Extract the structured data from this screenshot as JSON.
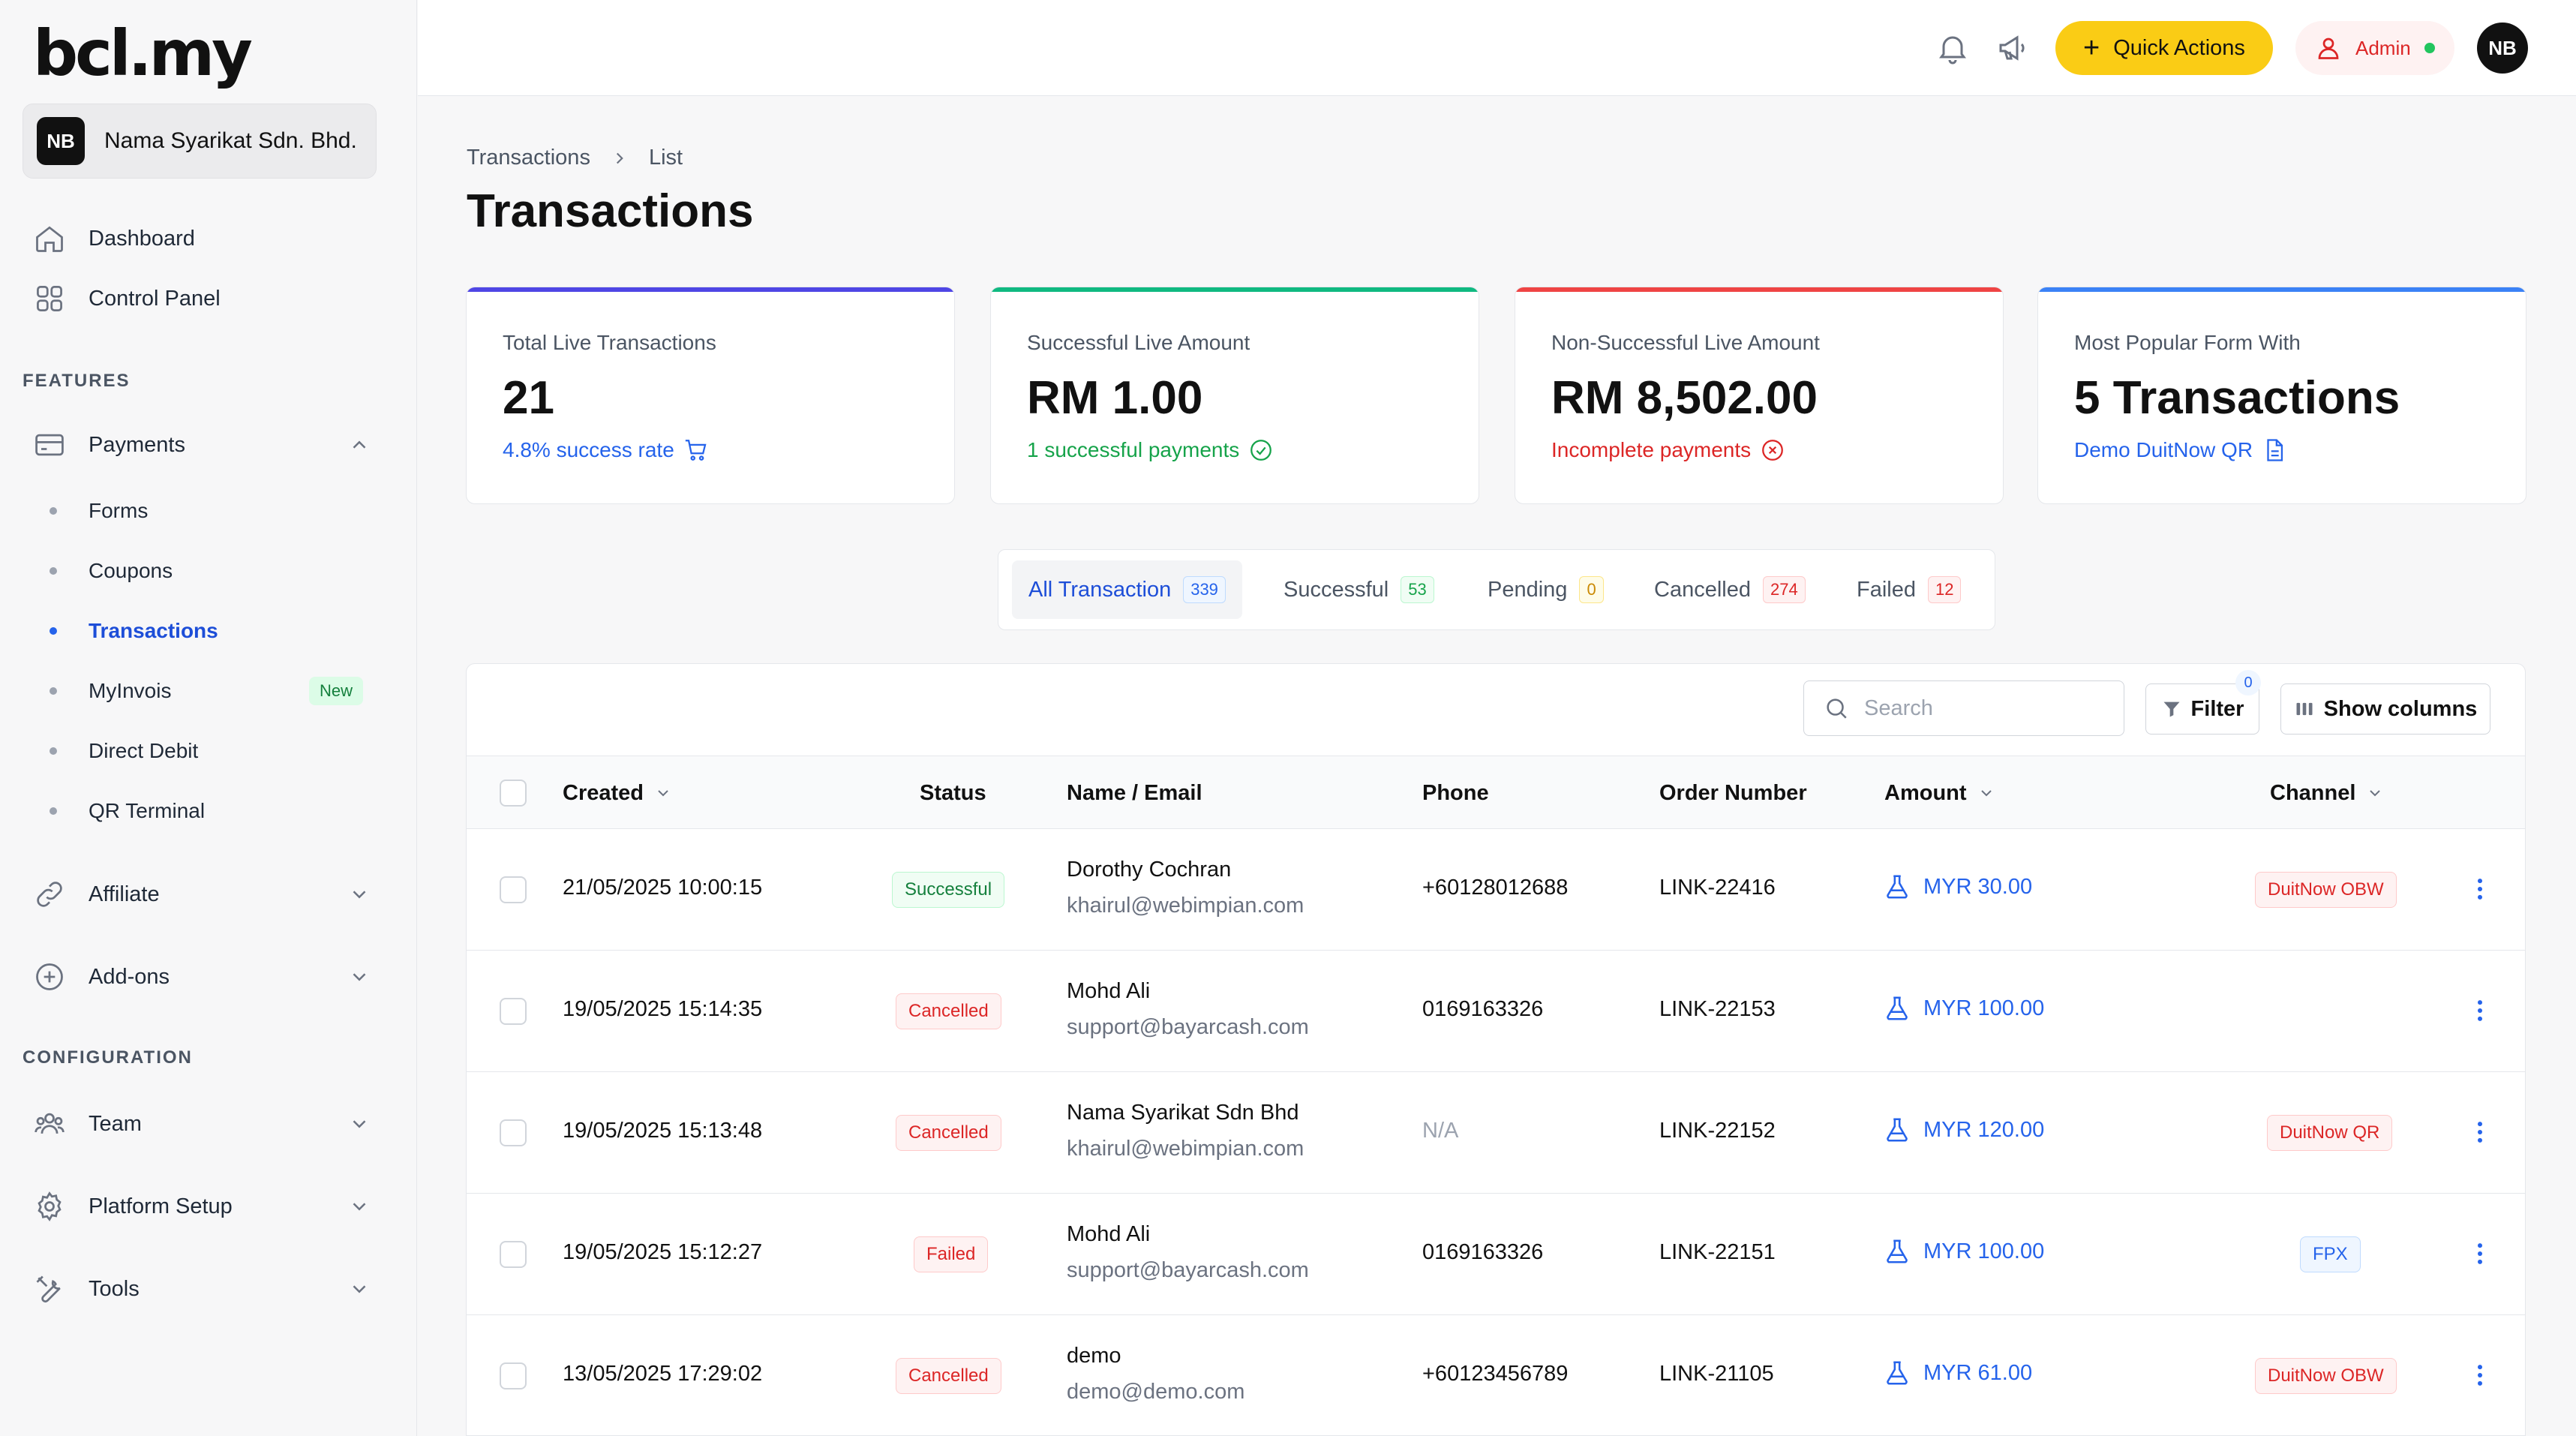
{
  "brand": {
    "logo": "bcl.my"
  },
  "org": {
    "initials": "NB",
    "name": "Nama Syarikat Sdn. Bhd."
  },
  "nav": {
    "dashboard": "Dashboard",
    "control_panel": "Control Panel",
    "features_label": "FEATURES",
    "payments": "Payments",
    "payments_sub": [
      "Forms",
      "Coupons",
      "Transactions",
      "MyInvois",
      "Direct Debit",
      "QR Terminal"
    ],
    "active_sub": "Transactions",
    "new_badge": "New",
    "affiliate": "Affiliate",
    "addons": "Add-ons",
    "config_label": "CONFIGURATION",
    "team": "Team",
    "platform_setup": "Platform Setup",
    "tools": "Tools"
  },
  "topbar": {
    "quick_actions": "Quick Actions",
    "admin": "Admin",
    "user_initials": "NB"
  },
  "breadcrumb": {
    "root": "Transactions",
    "current": "List"
  },
  "page_title": "Transactions",
  "stats": [
    {
      "label": "Total Live Transactions",
      "value": "21",
      "footer": "4.8% success rate",
      "accent": "#4f46e5",
      "footer_color": "#2563eb",
      "icon": "cart-icon"
    },
    {
      "label": "Successful Live Amount",
      "value": "RM 1.00",
      "footer": "1 successful payments",
      "accent": "#10b981",
      "footer_color": "#16a34a",
      "icon": "check-circle-icon"
    },
    {
      "label": "Non-Successful Live Amount",
      "value": "RM 8,502.00",
      "footer": "Incomplete payments",
      "accent": "#ef4444",
      "footer_color": "#dc2626",
      "icon": "x-circle-icon"
    },
    {
      "label": "Most Popular Form With",
      "value": "5 Transactions",
      "footer": "Demo DuitNow QR",
      "accent": "#3b82f6",
      "footer_color": "#2563eb",
      "icon": "document-icon"
    }
  ],
  "tabs": [
    {
      "label": "All Transaction",
      "count": "339",
      "color": "#2563eb"
    },
    {
      "label": "Successful",
      "count": "53",
      "color": "#16a34a"
    },
    {
      "label": "Pending",
      "count": "0",
      "color": "#ca8a04"
    },
    {
      "label": "Cancelled",
      "count": "274",
      "color": "#dc2626"
    },
    {
      "label": "Failed",
      "count": "12",
      "color": "#dc2626"
    }
  ],
  "toolbar": {
    "search_placeholder": "Search",
    "filter": "Filter",
    "filter_count": "0",
    "show_columns": "Show columns"
  },
  "columns": {
    "created": "Created",
    "status": "Status",
    "name_email": "Name / Email",
    "phone": "Phone",
    "order_number": "Order Number",
    "amount": "Amount",
    "channel": "Channel"
  },
  "rows": [
    {
      "created": "21/05/2025 10:00:15",
      "status": "Successful",
      "name": "Dorothy Cochran",
      "email": "khairul@webimpian.com",
      "phone": "+60128012688",
      "order": "LINK-22416",
      "amount": "MYR 30.00",
      "channel": "DuitNow OBW"
    },
    {
      "created": "19/05/2025 15:14:35",
      "status": "Cancelled",
      "name": "Mohd Ali",
      "email": "support@bayarcash.com",
      "phone": "0169163326",
      "order": "LINK-22153",
      "amount": "MYR 100.00",
      "channel": ""
    },
    {
      "created": "19/05/2025 15:13:48",
      "status": "Cancelled",
      "name": "Nama Syarikat Sdn Bhd",
      "email": "khairul@webimpian.com",
      "phone": "N/A",
      "order": "LINK-22152",
      "amount": "MYR 120.00",
      "channel": "DuitNow QR"
    },
    {
      "created": "19/05/2025 15:12:27",
      "status": "Failed",
      "name": "Mohd Ali",
      "email": "support@bayarcash.com",
      "phone": "0169163326",
      "order": "LINK-22151",
      "amount": "MYR 100.00",
      "channel": "FPX"
    },
    {
      "created": "13/05/2025 17:29:02",
      "status": "Cancelled",
      "name": "demo",
      "email": "demo@demo.com",
      "phone": "+60123456789",
      "order": "LINK-21105",
      "amount": "MYR 61.00",
      "channel": "DuitNow OBW"
    }
  ]
}
